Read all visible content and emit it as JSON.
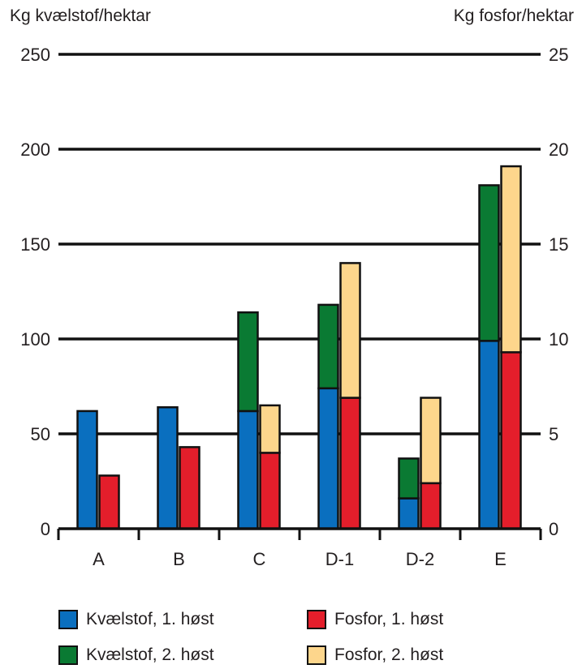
{
  "chart_data": {
    "type": "bar",
    "categories": [
      "A",
      "B",
      "C",
      "D-1",
      "D-2",
      "E"
    ],
    "left_axis": {
      "label": "Kg kvælstof/hektar",
      "ylim": [
        0,
        250
      ],
      "ticks": [
        0,
        50,
        100,
        150,
        200,
        250
      ]
    },
    "right_axis": {
      "label": "Kg fosfor/hektar",
      "ylim": [
        0,
        25
      ],
      "ticks": [
        0,
        5,
        10,
        15,
        20,
        25
      ]
    },
    "series": [
      {
        "name": "Kvælstof, 1. høst",
        "axis": "left",
        "stack": "kvaelstof",
        "color": "#0a6fbf",
        "values": [
          62,
          64,
          62,
          74,
          16,
          99
        ]
      },
      {
        "name": "Kvælstof, 2. høst",
        "axis": "left",
        "stack": "kvaelstof",
        "color": "#0a7a33",
        "values": [
          0,
          0,
          52,
          44,
          21,
          82
        ]
      },
      {
        "name": "Fosfor, 1. høst",
        "axis": "right",
        "stack": "fosfor",
        "color": "#e41e2b",
        "values": [
          2.8,
          4.3,
          4.0,
          6.9,
          2.4,
          9.3
        ]
      },
      {
        "name": "Fosfor, 2. høst",
        "axis": "right",
        "stack": "fosfor",
        "color": "#fdd68c",
        "values": [
          0,
          0,
          2.5,
          7.1,
          4.5,
          9.8
        ]
      }
    ],
    "grid": true,
    "legend_position": "bottom"
  }
}
